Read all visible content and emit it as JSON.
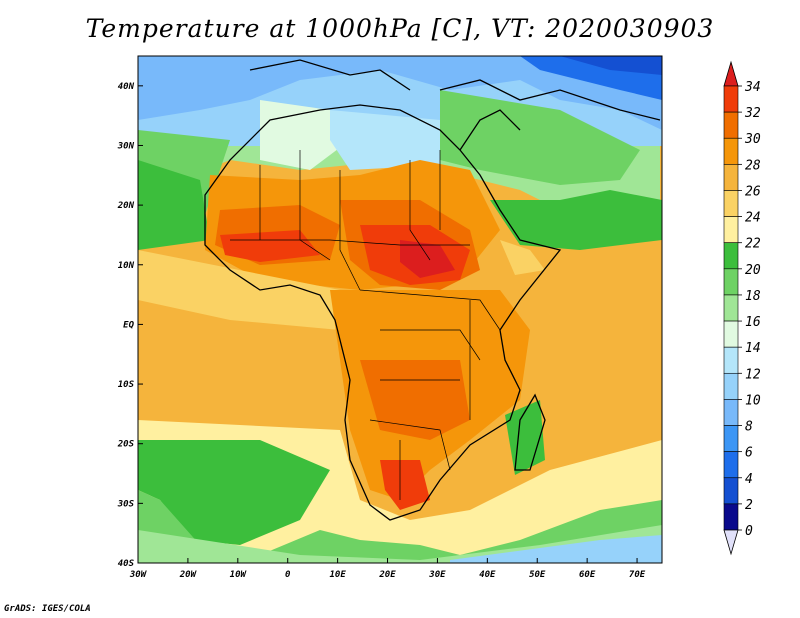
{
  "title": "Temperature at 1000hPa [C], VT: 2020030903",
  "credit": "GrADS: IGES/COLA",
  "map": {
    "lon_range": [
      -30,
      75
    ],
    "lat_range": [
      -40,
      45
    ],
    "lon_ticks": [
      {
        "value": -30,
        "label": "30W"
      },
      {
        "value": -20,
        "label": "20W"
      },
      {
        "value": -10,
        "label": "10W"
      },
      {
        "value": 0,
        "label": "0"
      },
      {
        "value": 10,
        "label": "10E"
      },
      {
        "value": 20,
        "label": "20E"
      },
      {
        "value": 30,
        "label": "30E"
      },
      {
        "value": 40,
        "label": "40E"
      },
      {
        "value": 50,
        "label": "50E"
      },
      {
        "value": 60,
        "label": "60E"
      },
      {
        "value": 70,
        "label": "70E"
      }
    ],
    "lat_ticks": [
      {
        "value": 40,
        "label": "40N"
      },
      {
        "value": 30,
        "label": "30N"
      },
      {
        "value": 20,
        "label": "20N"
      },
      {
        "value": 10,
        "label": "10N"
      },
      {
        "value": 0,
        "label": "EQ"
      },
      {
        "value": -10,
        "label": "10S"
      },
      {
        "value": -20,
        "label": "20S"
      },
      {
        "value": -30,
        "label": "30S"
      },
      {
        "value": -40,
        "label": "40S"
      }
    ]
  },
  "colorbar": {
    "levels": [
      {
        "label": "34",
        "color": "#dc1e1e"
      },
      {
        "label": "32",
        "color": "#f03c0a"
      },
      {
        "label": "30",
        "color": "#f06e00"
      },
      {
        "label": "28",
        "color": "#f5960a"
      },
      {
        "label": "26",
        "color": "#f5b43c"
      },
      {
        "label": "24",
        "color": "#fad264"
      },
      {
        "label": "22",
        "color": "#fff0a0"
      },
      {
        "label": "20",
        "color": "#3cbe3c"
      },
      {
        "label": "18",
        "color": "#6ed264"
      },
      {
        "label": "16",
        "color": "#a0e696"
      },
      {
        "label": "14",
        "color": "#e1fae1"
      },
      {
        "label": "12",
        "color": "#b4e6fa"
      },
      {
        "label": "10",
        "color": "#96d2fa"
      },
      {
        "label": "8",
        "color": "#78b9fa"
      },
      {
        "label": "6",
        "color": "#3c96f5"
      },
      {
        "label": "4",
        "color": "#1e6eeb"
      },
      {
        "label": "2",
        "color": "#1450d2"
      },
      {
        "label": "0",
        "color": "#0a0a8c"
      }
    ],
    "over_color": "#dc1e1e",
    "under_color": "#e1e1fa"
  }
}
